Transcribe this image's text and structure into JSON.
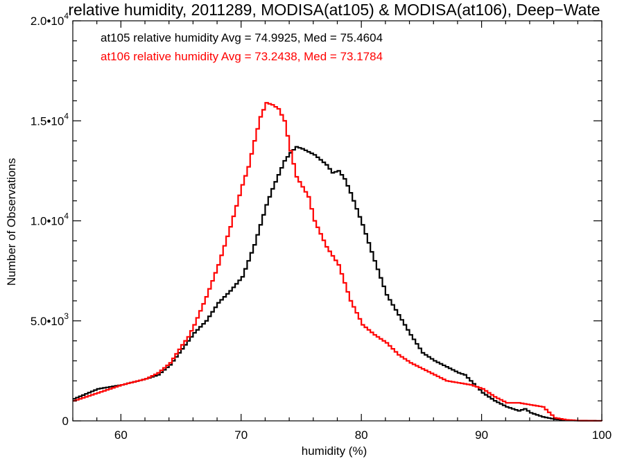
{
  "chart_data": {
    "type": "line",
    "title": "relative humidity, 2011289, MODISA(at105) & MODISA(at106), Deep−Wate",
    "xlabel": "humidity (%)",
    "ylabel": "Number of Observations",
    "xlim": [
      56,
      100
    ],
    "ylim": [
      0,
      20000
    ],
    "x_ticks": [
      60,
      70,
      80,
      90,
      100
    ],
    "x_tick_labels": [
      "60",
      "70",
      "80",
      "90",
      "100"
    ],
    "y_ticks": [
      0,
      5000,
      10000,
      15000,
      20000
    ],
    "y_tick_labels": [
      {
        "mantissa": "0",
        "exp": ""
      },
      {
        "mantissa": "5.0•10",
        "exp": "3"
      },
      {
        "mantissa": "1.0•10",
        "exp": "4"
      },
      {
        "mantissa": "1.5•10",
        "exp": "4"
      },
      {
        "mantissa": "2.0•10",
        "exp": "4"
      }
    ],
    "grid": false,
    "annotations": [
      {
        "text": "at105 relative humidity Avg = 74.9925, Med = 75.4604",
        "color": "#000000"
      },
      {
        "text": "at106 relative humidity Avg = 73.2438, Med = 73.1784",
        "color": "#ff0000"
      }
    ],
    "series": [
      {
        "color": "#000000",
        "x": [
          56,
          58,
          60,
          62,
          63,
          64,
          65,
          66,
          67,
          68,
          69,
          70,
          71,
          72,
          72.5,
          73,
          73.5,
          74,
          74.5,
          75,
          76,
          77,
          77.5,
          78,
          78.5,
          79,
          80,
          81,
          82,
          83,
          84,
          85,
          86,
          87,
          88,
          88.5,
          89,
          90,
          91,
          92,
          93,
          93.5,
          94,
          95,
          96,
          97,
          98,
          100
        ],
        "y": [
          1100,
          1600,
          1800,
          2100,
          2300,
          2800,
          3600,
          4400,
          5000,
          5900,
          6500,
          7200,
          8800,
          10800,
          11600,
          12300,
          13000,
          13400,
          13700,
          13600,
          13300,
          12800,
          12400,
          12500,
          12100,
          11400,
          9800,
          8000,
          6300,
          5300,
          4300,
          3400,
          3000,
          2700,
          2400,
          2300,
          2000,
          1400,
          1000,
          700,
          500,
          600,
          400,
          200,
          80,
          30,
          10,
          0
        ]
      },
      {
        "color": "#ff0000",
        "x": [
          56,
          58,
          60,
          62,
          63,
          64,
          65,
          65.5,
          66,
          66.5,
          67,
          68,
          69,
          70,
          70.5,
          71,
          71.5,
          72,
          72.5,
          73,
          73.5,
          74,
          74.5,
          75,
          75.5,
          76,
          77,
          78,
          78.5,
          79,
          80,
          81,
          82,
          83,
          84,
          85,
          86,
          87,
          88,
          89,
          90,
          91,
          92,
          93,
          94,
          95,
          96,
          97,
          98,
          100
        ],
        "y": [
          1000,
          1400,
          1800,
          2100,
          2400,
          2900,
          3800,
          4200,
          4800,
          5500,
          6200,
          7800,
          9700,
          11800,
          12700,
          14000,
          15200,
          15900,
          15800,
          15600,
          15000,
          13500,
          12200,
          11700,
          11200,
          10000,
          8700,
          7800,
          6900,
          6000,
          4800,
          4300,
          3900,
          3300,
          2900,
          2600,
          2300,
          2000,
          1900,
          1800,
          1600,
          1200,
          900,
          900,
          800,
          700,
          150,
          50,
          10,
          0
        ]
      }
    ]
  }
}
